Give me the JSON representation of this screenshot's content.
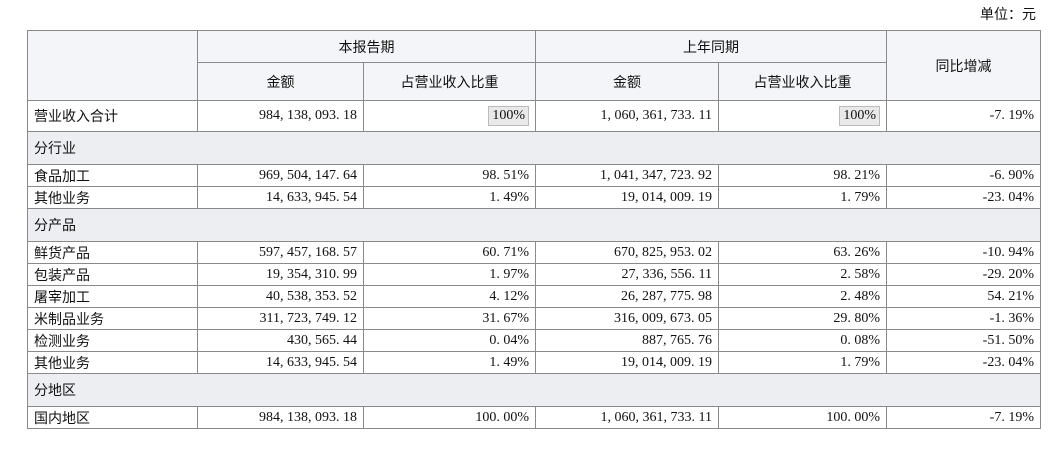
{
  "unit": "单位：元",
  "table": {
    "header": {
      "groups": [
        "本报告期",
        "上年同期"
      ],
      "columns": [
        "金额",
        "占营业收入比重",
        "金额",
        "占营业收入比重"
      ],
      "change": "同比增减"
    },
    "rows": [
      [
        "营业收入合计",
        "984, 138, 093. 18",
        "100%",
        "1, 060, 361, 733. 11",
        "100%",
        "-7. 19%"
      ],
      [
        "分行业"
      ],
      [
        "食品加工",
        "969, 504, 147. 64",
        "98. 51%",
        "1, 041, 347, 723. 92",
        "98. 21%",
        "-6. 90%"
      ],
      [
        "其他业务",
        "14, 633, 945. 54",
        "1. 49%",
        "19, 014, 009. 19",
        "1. 79%",
        "-23. 04%"
      ],
      [
        "分产品"
      ],
      [
        "鲜货产品",
        "597, 457, 168. 57",
        "60. 71%",
        "670, 825, 953. 02",
        "63. 26%",
        "-10. 94%"
      ],
      [
        "包装产品",
        "19, 354, 310. 99",
        "1. 97%",
        "27, 336, 556. 11",
        "2. 58%",
        "-29. 20%"
      ],
      [
        "屠宰加工",
        "40, 538, 353. 52",
        "4. 12%",
        "26, 287, 775. 98",
        "2. 48%",
        "54. 21%"
      ],
      [
        "米制品业务",
        "311, 723, 749. 12",
        "31. 67%",
        "316, 009, 673. 05",
        "29. 80%",
        "-1. 36%"
      ],
      [
        "检测业务",
        "430, 565. 44",
        "0. 04%",
        "887, 765. 76",
        "0. 08%",
        "-51. 50%"
      ],
      [
        "其他业务",
        "14, 633, 945. 54",
        "1. 49%",
        "19, 014, 009. 19",
        "1. 79%",
        "-23. 04%"
      ],
      [
        "分地区"
      ],
      [
        "国内地区",
        "984, 138, 093. 18",
        "100. 00%",
        "1, 060, 361, 733. 11",
        "100. 00%",
        "-7. 19%"
      ]
    ]
  }
}
